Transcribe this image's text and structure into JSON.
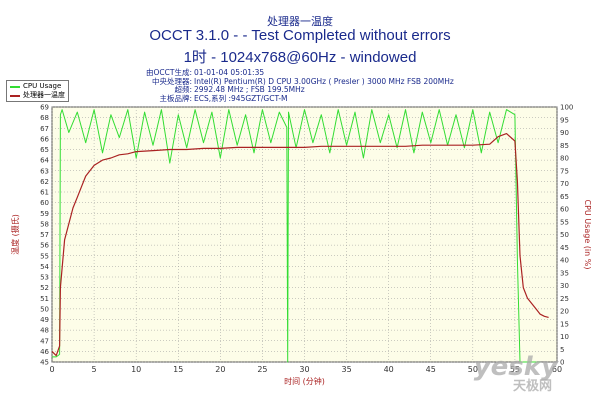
{
  "header": {
    "subtitle_cn": "处理器一温度",
    "title": "OCCT 3.1.0 -  - Test Completed without errors",
    "resolution": "1时 - 1024x768@60Hz - windowed"
  },
  "info": {
    "generated_label": "由OCCT生成:",
    "generated_value": "01-01-04 05:01:35",
    "cpu_label": "中央处理器:",
    "cpu_value": "Intel(R) Pentium(R) D CPU 3.00GHz ( Presler ) 3000 MHz FSB 200MHz",
    "oc_label": "超频:",
    "oc_value": "2992.48 MHz ; FSB 199.5MHz",
    "mb_label": "主板品牌:",
    "mb_value": "ECS,系列 :945GZT/GCT-M"
  },
  "legend": [
    {
      "label": "CPU Usage",
      "color": "#33dd33"
    },
    {
      "label": "处理器一温度",
      "color": "#aa2222"
    }
  ],
  "watermark": {
    "brand": "yesky",
    "cn": "天极网"
  },
  "chart_data": {
    "type": "line",
    "title": "处理器一温度",
    "xlabel": "时间 (分钟)",
    "ylabel_left": "温度 (摄氏)",
    "ylabel_right": "CPU Usage (in %)",
    "xlim": [
      0,
      60
    ],
    "ylim_left": [
      45,
      69
    ],
    "ylim_right": [
      0,
      100
    ],
    "x_ticks": [
      0,
      5,
      10,
      15,
      20,
      25,
      30,
      35,
      40,
      45,
      50,
      55,
      60
    ],
    "y_left_ticks": [
      45,
      46,
      47,
      48,
      49,
      50,
      51,
      52,
      53,
      54,
      55,
      56,
      57,
      58,
      59,
      60,
      61,
      62,
      63,
      64,
      65,
      66,
      67,
      68,
      69
    ],
    "y_right_ticks": [
      0,
      5,
      10,
      15,
      20,
      25,
      30,
      35,
      40,
      45,
      50,
      55,
      60,
      65,
      70,
      75,
      80,
      85,
      90,
      95,
      100
    ],
    "grid": true,
    "background": "#fdfde8",
    "series": [
      {
        "name": "CPU Usage",
        "axis": "right",
        "color": "#33dd33",
        "x": [
          0,
          0.5,
          0.9,
          1.0,
          1.2,
          2,
          3,
          4,
          5,
          6,
          7,
          8,
          9,
          10,
          11,
          12,
          13,
          14,
          15,
          16,
          17,
          18,
          19,
          20,
          21,
          22,
          23,
          24,
          25,
          26,
          27,
          27.9,
          28.0,
          28.1,
          29,
          30,
          31,
          32,
          33,
          34,
          35,
          36,
          37,
          38,
          39,
          40,
          41,
          42,
          43,
          44,
          45,
          46,
          47,
          48,
          49,
          50,
          51,
          52,
          53,
          54,
          55.0,
          55.3,
          55.6,
          56.0,
          56.5,
          57,
          58
        ],
        "y": [
          2,
          2,
          3,
          97,
          99,
          90,
          98,
          86,
          99,
          82,
          97,
          88,
          99,
          80,
          98,
          85,
          99,
          78,
          97,
          84,
          99,
          86,
          98,
          80,
          99,
          85,
          97,
          82,
          99,
          86,
          98,
          92,
          0,
          98,
          84,
          99,
          86,
          97,
          82,
          99,
          85,
          98,
          80,
          99,
          86,
          97,
          84,
          99,
          82,
          98,
          86,
          99,
          85,
          97,
          84,
          99,
          82,
          98,
          86,
          99,
          97,
          40,
          0,
          0,
          0,
          0,
          0
        ]
      },
      {
        "name": "处理器一温度",
        "axis": "left",
        "color": "#aa2222",
        "x": [
          0,
          0.5,
          0.9,
          1.0,
          1.5,
          2,
          2.5,
          3,
          3.5,
          4,
          4.5,
          5,
          6,
          7,
          8,
          9,
          10,
          12,
          14,
          16,
          18,
          20,
          22,
          24,
          26,
          28,
          30,
          32,
          34,
          36,
          38,
          40,
          42,
          44,
          46,
          48,
          50,
          52,
          53,
          54,
          55,
          55.3,
          55.6,
          56,
          56.5,
          57,
          57.5,
          58,
          58.5,
          59
        ],
        "y": [
          46,
          45.6,
          46.5,
          52,
          56.5,
          58,
          59.5,
          60.5,
          61.5,
          62.5,
          63,
          63.5,
          64,
          64.2,
          64.5,
          64.6,
          64.8,
          64.9,
          65,
          65,
          65.1,
          65.1,
          65.2,
          65.2,
          65.2,
          65.2,
          65.2,
          65.3,
          65.3,
          65.3,
          65.3,
          65.3,
          65.3,
          65.4,
          65.4,
          65.4,
          65.4,
          65.5,
          66.2,
          66.5,
          65.8,
          62,
          55,
          52,
          51,
          50.5,
          50,
          49.5,
          49.3,
          49.2
        ]
      }
    ]
  }
}
